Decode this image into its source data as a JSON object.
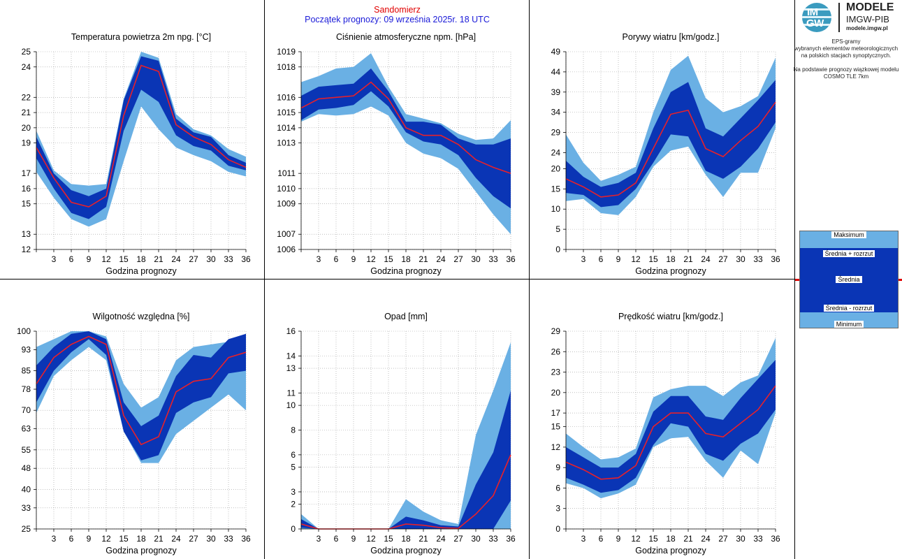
{
  "header": {
    "station": "Sandomierz",
    "start": "Początek prognozy: 09 września 2025r. 18 UTC"
  },
  "sidebar": {
    "logo_line1": "IM",
    "logo_line2": "GW",
    "brand_1": "MODELE",
    "brand_2": "IMGW-PIB",
    "brand_3": "modele.imgw.pl",
    "description": [
      "EPS-gramy",
      "wybranych elementów meteorologicznych",
      "na polskich stacjach  synoptycznych.",
      "",
      "Na podstawie prognozy wiązkowej modelu",
      "COSMO TLE 7km"
    ],
    "legend": {
      "max": "Maksimum",
      "mean_plus": "Średnia + rozrzut",
      "mean": "Średnia",
      "mean_minus": "Średnia - rozrzut",
      "min": "Minimum"
    }
  },
  "colors": {
    "light_band": "#6ab0e4",
    "dark_band": "#0a35b5",
    "mean_line": "#e8202a",
    "station_text": "#e00000",
    "start_text": "#1a1ad8"
  },
  "chart_data": [
    {
      "type": "area",
      "title": "Temperatura powietrza 2m npg. [°C]",
      "xlabel": "Godzina prognozy",
      "x": [
        0,
        3,
        6,
        9,
        12,
        15,
        18,
        21,
        24,
        27,
        30,
        33,
        36
      ],
      "xticks": [
        "3",
        "6",
        "9",
        "12",
        "15",
        "18",
        "21",
        "24",
        "27",
        "30",
        "33",
        "36"
      ],
      "ylim": [
        12,
        25
      ],
      "yticks": [
        12,
        13,
        15,
        16,
        17,
        19,
        20,
        21,
        22,
        24,
        25
      ],
      "ytick_labels": [
        "12",
        "13",
        "15",
        "16",
        "17",
        "19",
        "20",
        "21",
        "22",
        "24",
        "25"
      ],
      "series": [
        {
          "name": "Maksimum",
          "values": [
            19.8,
            17.2,
            16.3,
            16.2,
            16.3,
            21.9,
            25.0,
            24.6,
            20.9,
            19.9,
            19.5,
            18.6,
            18.1
          ]
        },
        {
          "name": "Średnia + rozrzut",
          "values": [
            19.4,
            17.0,
            15.9,
            15.5,
            16.0,
            21.8,
            24.7,
            24.4,
            20.6,
            19.7,
            19.4,
            18.2,
            17.7
          ]
        },
        {
          "name": "Średnia",
          "values": [
            18.7,
            16.7,
            15.1,
            14.8,
            15.5,
            20.8,
            24.1,
            23.7,
            20.2,
            19.4,
            18.9,
            17.9,
            17.4
          ]
        },
        {
          "name": "Średnia - rozrzut",
          "values": [
            18.0,
            16.0,
            14.4,
            14.0,
            14.8,
            19.8,
            22.5,
            21.7,
            19.5,
            18.8,
            18.5,
            17.5,
            17.2
          ]
        },
        {
          "name": "Minimum",
          "values": [
            17.1,
            15.4,
            14.0,
            13.5,
            14.0,
            17.8,
            21.4,
            19.9,
            18.7,
            18.2,
            17.8,
            17.1,
            16.8
          ]
        }
      ]
    },
    {
      "type": "area",
      "title": "Ciśnienie atmosferyczne npm. [hPa]",
      "xlabel": "Godzina prognozy",
      "x": [
        0,
        3,
        6,
        9,
        12,
        15,
        18,
        21,
        24,
        27,
        30,
        33,
        36
      ],
      "xticks": [
        "3",
        "6",
        "9",
        "12",
        "15",
        "18",
        "21",
        "24",
        "27",
        "30",
        "33",
        "36"
      ],
      "ylim": [
        1006,
        1019
      ],
      "yticks": [
        1006,
        1007,
        1009,
        1010,
        1011,
        1013,
        1014,
        1015,
        1016,
        1018,
        1019
      ],
      "ytick_labels": [
        "1006",
        "1007",
        "1009",
        "1010",
        "1011",
        "1013",
        "1014",
        "1015",
        "1016",
        "1018",
        "1019"
      ],
      "series": [
        {
          "name": "Maksimum",
          "values": [
            1017.0,
            1017.4,
            1017.9,
            1018.0,
            1018.9,
            1016.7,
            1014.9,
            1014.6,
            1014.3,
            1013.6,
            1013.2,
            1013.3,
            1014.5
          ]
        },
        {
          "name": "Średnia + rozrzut",
          "values": [
            1016.1,
            1016.7,
            1016.8,
            1016.9,
            1017.9,
            1016.4,
            1014.4,
            1014.4,
            1014.2,
            1013.3,
            1012.9,
            1012.9,
            1013.3
          ]
        },
        {
          "name": "Średnia",
          "values": [
            1015.3,
            1015.9,
            1016.0,
            1016.1,
            1017.0,
            1015.9,
            1014.0,
            1013.5,
            1013.5,
            1012.9,
            1011.9,
            1011.4,
            1011.0
          ]
        },
        {
          "name": "Średnia - rozrzut",
          "values": [
            1014.5,
            1015.2,
            1015.3,
            1015.5,
            1016.4,
            1015.4,
            1013.7,
            1013.1,
            1012.9,
            1012.2,
            1010.7,
            1009.5,
            1008.7
          ]
        },
        {
          "name": "Minimum",
          "values": [
            1014.4,
            1014.9,
            1014.8,
            1014.9,
            1015.4,
            1014.8,
            1013.0,
            1012.3,
            1012.0,
            1011.3,
            1009.8,
            1008.3,
            1007.0
          ]
        }
      ]
    },
    {
      "type": "area",
      "title": "Porywy wiatru [km/godz.]",
      "xlabel": "Godzina prognozy",
      "x": [
        0,
        3,
        6,
        9,
        12,
        15,
        18,
        21,
        24,
        27,
        30,
        33,
        36
      ],
      "xticks": [
        "3",
        "6",
        "9",
        "12",
        "15",
        "18",
        "21",
        "24",
        "27",
        "30",
        "33",
        "36"
      ],
      "ylim": [
        0,
        49
      ],
      "yticks": [
        0,
        5,
        10,
        15,
        20,
        24,
        29,
        34,
        39,
        44,
        49
      ],
      "ytick_labels": [
        "0",
        "5",
        "10",
        "15",
        "20",
        "24",
        "29",
        "34",
        "39",
        "44",
        "49"
      ],
      "series": [
        {
          "name": "Maksimum",
          "values": [
            28.5,
            21.5,
            17.0,
            18.5,
            20.5,
            34.0,
            44.5,
            48.0,
            37.5,
            34.0,
            35.5,
            38.0,
            47.5
          ]
        },
        {
          "name": "Średnia + rozrzut",
          "values": [
            22.0,
            18.0,
            15.5,
            16.5,
            19.0,
            30.0,
            39.0,
            41.5,
            30.0,
            28.0,
            32.5,
            37.0,
            42.0
          ]
        },
        {
          "name": "Średnia",
          "values": [
            17.5,
            15.5,
            13.0,
            13.5,
            16.5,
            25.0,
            33.5,
            34.5,
            25.0,
            23.0,
            27.0,
            30.5,
            36.5
          ]
        },
        {
          "name": "Średnia - rozrzut",
          "values": [
            14.0,
            13.5,
            10.5,
            11.0,
            15.0,
            21.5,
            28.5,
            28.0,
            19.5,
            17.5,
            20.5,
            25.0,
            31.5
          ]
        },
        {
          "name": "Minimum",
          "values": [
            12.0,
            12.5,
            9.0,
            8.5,
            13.0,
            20.5,
            24.5,
            25.5,
            18.5,
            13.0,
            19.0,
            19.0,
            30.0
          ]
        }
      ]
    },
    {
      "type": "area",
      "title": "Wilgotność względna [%]",
      "xlabel": "Godzina prognozy",
      "x": [
        0,
        3,
        6,
        9,
        12,
        15,
        18,
        21,
        24,
        27,
        30,
        33,
        36
      ],
      "xticks": [
        "3",
        "6",
        "9",
        "12",
        "15",
        "18",
        "21",
        "24",
        "27",
        "30",
        "33",
        "36"
      ],
      "ylim": [
        25,
        100
      ],
      "yticks": [
        25,
        33,
        40,
        48,
        55,
        63,
        70,
        78,
        85,
        93,
        100
      ],
      "ytick_labels": [
        "25",
        "33",
        "40",
        "48",
        "55",
        "63",
        "70",
        "78",
        "85",
        "93",
        "100"
      ],
      "series": [
        {
          "name": "Maksimum",
          "values": [
            94,
            97,
            100,
            100,
            98,
            80,
            71,
            75,
            89,
            94,
            95,
            96,
            99
          ]
        },
        {
          "name": "Średnia + rozrzut",
          "values": [
            87,
            94,
            99,
            100,
            97,
            73,
            64,
            68,
            83,
            91,
            90,
            97,
            99
          ]
        },
        {
          "name": "Średnia",
          "values": [
            80,
            90,
            95,
            98,
            95,
            68,
            57,
            60,
            77,
            81,
            82,
            90,
            92
          ]
        },
        {
          "name": "Średnia - rozrzut",
          "values": [
            73,
            85,
            92,
            97,
            91,
            62,
            51,
            53,
            69,
            73,
            75,
            84,
            85
          ]
        },
        {
          "name": "Minimum",
          "values": [
            69,
            83,
            89,
            94,
            89,
            62,
            50,
            50,
            61,
            66,
            71,
            76,
            70
          ]
        }
      ]
    },
    {
      "type": "area",
      "title": "Opad [mm]",
      "xlabel": "Godzina prognozy",
      "x": [
        0,
        3,
        6,
        9,
        12,
        15,
        18,
        21,
        24,
        27,
        30,
        33,
        36
      ],
      "xticks": [
        "3",
        "6",
        "9",
        "12",
        "15",
        "18",
        "21",
        "24",
        "27",
        "30",
        "33",
        "36"
      ],
      "ylim": [
        0,
        16
      ],
      "yticks": [
        0,
        2,
        3,
        5,
        6,
        8,
        10,
        11,
        13,
        14,
        16
      ],
      "ytick_labels": [
        "0",
        "2",
        "3",
        "5",
        "6",
        "8",
        "10",
        "11",
        "13",
        "14",
        "16"
      ],
      "series": [
        {
          "name": "Maksimum",
          "values": [
            1.2,
            0,
            0,
            0,
            0,
            0,
            2.4,
            1.4,
            0.7,
            0.4,
            7.6,
            11.2,
            15.1
          ]
        },
        {
          "name": "Średnia + rozrzut",
          "values": [
            0.8,
            0,
            0,
            0,
            0,
            0,
            1.0,
            0.7,
            0.3,
            0.2,
            3.6,
            6.2,
            11.2
          ]
        },
        {
          "name": "Średnia",
          "values": [
            0.4,
            0,
            0,
            0,
            0,
            0,
            0.4,
            0.3,
            0.1,
            0.05,
            1.2,
            2.7,
            6.0
          ]
        },
        {
          "name": "Średnia - rozrzut",
          "values": [
            0.1,
            0,
            0,
            0,
            0,
            0,
            0,
            0,
            0,
            0,
            0,
            0,
            2.3
          ]
        },
        {
          "name": "Minimum",
          "values": [
            0,
            0,
            0,
            0,
            0,
            0,
            0,
            0,
            0,
            0,
            0,
            0,
            0
          ]
        }
      ]
    },
    {
      "type": "area",
      "title": "Prędkość wiatru [km/godz.]",
      "xlabel": "Godzina prognozy",
      "x": [
        0,
        3,
        6,
        9,
        12,
        15,
        18,
        21,
        24,
        27,
        30,
        33,
        36
      ],
      "xticks": [
        "3",
        "6",
        "9",
        "12",
        "15",
        "18",
        "21",
        "24",
        "27",
        "30",
        "33",
        "36"
      ],
      "ylim": [
        0,
        29
      ],
      "yticks": [
        0,
        3,
        6,
        9,
        12,
        15,
        17,
        20,
        23,
        26,
        29
      ],
      "ytick_labels": [
        "0",
        "3",
        "6",
        "9",
        "12",
        "15",
        "17",
        "20",
        "23",
        "26",
        "29"
      ],
      "series": [
        {
          "name": "Maksimum",
          "values": [
            14.0,
            12.0,
            10.2,
            10.5,
            11.8,
            19.3,
            20.5,
            21.0,
            21.0,
            19.5,
            21.5,
            22.5,
            28.0
          ]
        },
        {
          "name": "Średnia + rozrzut",
          "values": [
            12.0,
            10.5,
            9.0,
            9.0,
            11.0,
            17.2,
            19.5,
            19.5,
            16.5,
            16.0,
            19.2,
            22.0,
            24.8
          ]
        },
        {
          "name": "Średnia",
          "values": [
            9.8,
            8.7,
            7.3,
            7.5,
            9.3,
            15.0,
            17.0,
            17.0,
            14.0,
            13.5,
            15.5,
            17.5,
            21.0
          ]
        },
        {
          "name": "Średnia - rozrzut",
          "values": [
            7.5,
            6.5,
            5.3,
            5.7,
            7.5,
            12.3,
            15.5,
            15.0,
            11.0,
            10.0,
            12.5,
            14.0,
            17.5
          ]
        },
        {
          "name": "Minimum",
          "values": [
            6.7,
            6.0,
            4.5,
            5.2,
            6.5,
            12.0,
            13.3,
            13.5,
            10.0,
            7.5,
            11.5,
            9.5,
            17.0
          ]
        }
      ]
    }
  ]
}
